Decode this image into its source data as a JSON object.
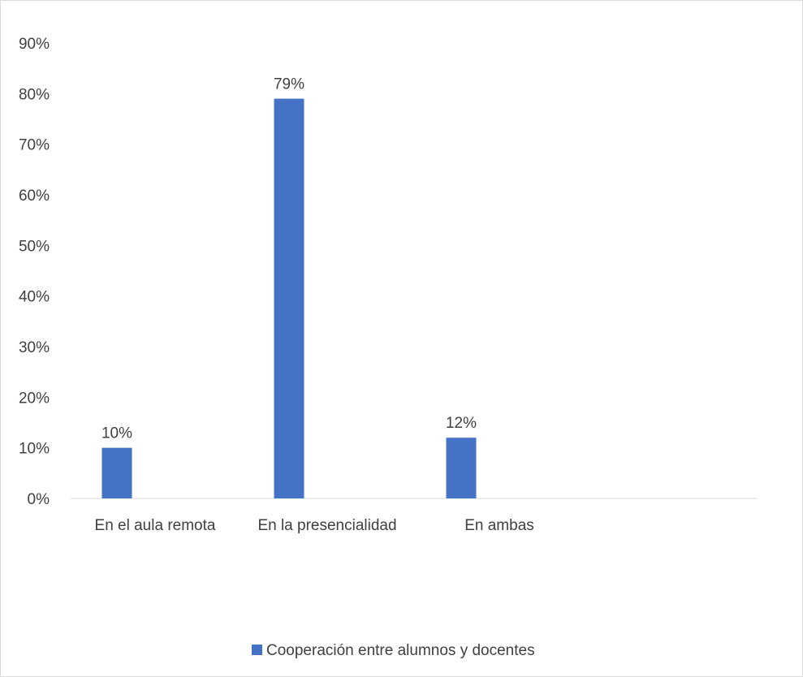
{
  "chart_data": {
    "type": "bar",
    "categories": [
      "En el aula remota",
      "En la presencialidad",
      "En ambas"
    ],
    "series": [
      {
        "name": "Cooperación entre alumnos y docentes",
        "values": [
          0.1,
          0.79,
          0.12
        ],
        "data_labels": [
          "10%",
          "79%",
          "12%"
        ],
        "color": "#4472c4"
      }
    ],
    "y_ticks": [
      "0%",
      "10%",
      "20%",
      "30%",
      "40%",
      "50%",
      "60%",
      "70%",
      "80%",
      "90%"
    ],
    "ylim": [
      0,
      0.9
    ],
    "y_format": "percent",
    "grid": false,
    "legend_position": "bottom",
    "axis_color": "#d9d9d9",
    "text_color": "#404040"
  }
}
